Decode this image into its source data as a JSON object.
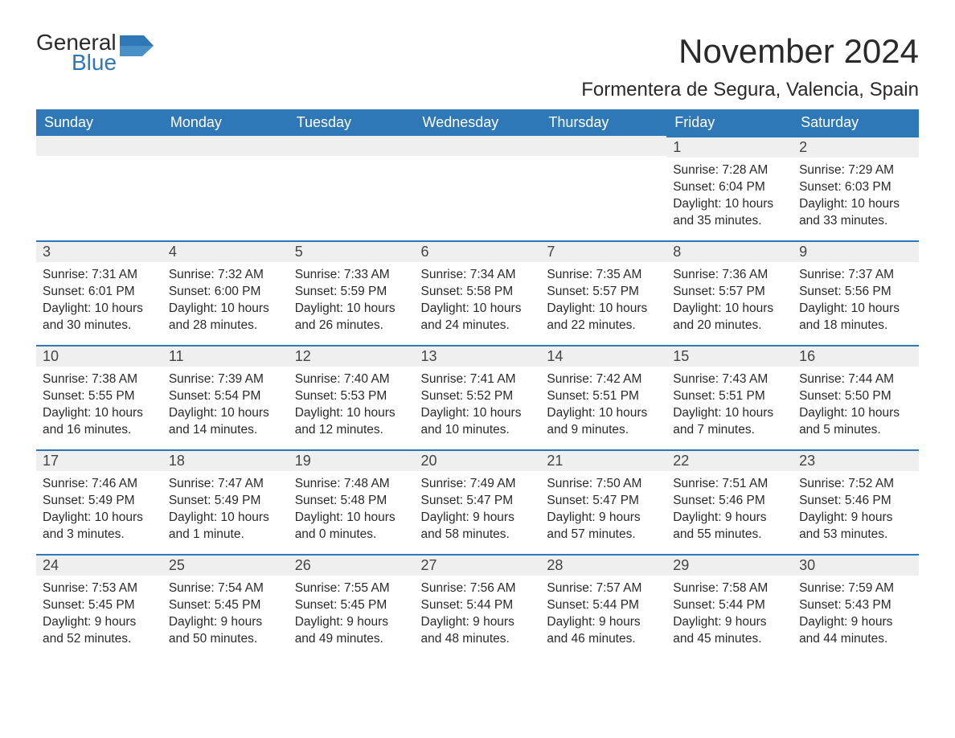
{
  "logo": {
    "text1": "General",
    "text2": "Blue",
    "accent_color": "#2f78b7"
  },
  "title": "November 2024",
  "location": "Formentera de Segura, Valencia, Spain",
  "colors": {
    "header_bg": "#2f78b7",
    "header_text": "#ffffff",
    "dayrow_bg": "#efefef",
    "dayrow_border": "#2f78b7",
    "body_bg": "#ffffff",
    "text": "#2a2a2a"
  },
  "fonts": {
    "title_size": 42,
    "location_size": 24,
    "th_size": 18,
    "daynum_size": 18,
    "body_size": 15.5
  },
  "weekdays": [
    "Sunday",
    "Monday",
    "Tuesday",
    "Wednesday",
    "Thursday",
    "Friday",
    "Saturday"
  ],
  "weeks": [
    [
      null,
      null,
      null,
      null,
      null,
      {
        "n": "1",
        "sr": "Sunrise: 7:28 AM",
        "ss": "Sunset: 6:04 PM",
        "dl": "Daylight: 10 hours and 35 minutes."
      },
      {
        "n": "2",
        "sr": "Sunrise: 7:29 AM",
        "ss": "Sunset: 6:03 PM",
        "dl": "Daylight: 10 hours and 33 minutes."
      }
    ],
    [
      {
        "n": "3",
        "sr": "Sunrise: 7:31 AM",
        "ss": "Sunset: 6:01 PM",
        "dl": "Daylight: 10 hours and 30 minutes."
      },
      {
        "n": "4",
        "sr": "Sunrise: 7:32 AM",
        "ss": "Sunset: 6:00 PM",
        "dl": "Daylight: 10 hours and 28 minutes."
      },
      {
        "n": "5",
        "sr": "Sunrise: 7:33 AM",
        "ss": "Sunset: 5:59 PM",
        "dl": "Daylight: 10 hours and 26 minutes."
      },
      {
        "n": "6",
        "sr": "Sunrise: 7:34 AM",
        "ss": "Sunset: 5:58 PM",
        "dl": "Daylight: 10 hours and 24 minutes."
      },
      {
        "n": "7",
        "sr": "Sunrise: 7:35 AM",
        "ss": "Sunset: 5:57 PM",
        "dl": "Daylight: 10 hours and 22 minutes."
      },
      {
        "n": "8",
        "sr": "Sunrise: 7:36 AM",
        "ss": "Sunset: 5:57 PM",
        "dl": "Daylight: 10 hours and 20 minutes."
      },
      {
        "n": "9",
        "sr": "Sunrise: 7:37 AM",
        "ss": "Sunset: 5:56 PM",
        "dl": "Daylight: 10 hours and 18 minutes."
      }
    ],
    [
      {
        "n": "10",
        "sr": "Sunrise: 7:38 AM",
        "ss": "Sunset: 5:55 PM",
        "dl": "Daylight: 10 hours and 16 minutes."
      },
      {
        "n": "11",
        "sr": "Sunrise: 7:39 AM",
        "ss": "Sunset: 5:54 PM",
        "dl": "Daylight: 10 hours and 14 minutes."
      },
      {
        "n": "12",
        "sr": "Sunrise: 7:40 AM",
        "ss": "Sunset: 5:53 PM",
        "dl": "Daylight: 10 hours and 12 minutes."
      },
      {
        "n": "13",
        "sr": "Sunrise: 7:41 AM",
        "ss": "Sunset: 5:52 PM",
        "dl": "Daylight: 10 hours and 10 minutes."
      },
      {
        "n": "14",
        "sr": "Sunrise: 7:42 AM",
        "ss": "Sunset: 5:51 PM",
        "dl": "Daylight: 10 hours and 9 minutes."
      },
      {
        "n": "15",
        "sr": "Sunrise: 7:43 AM",
        "ss": "Sunset: 5:51 PM",
        "dl": "Daylight: 10 hours and 7 minutes."
      },
      {
        "n": "16",
        "sr": "Sunrise: 7:44 AM",
        "ss": "Sunset: 5:50 PM",
        "dl": "Daylight: 10 hours and 5 minutes."
      }
    ],
    [
      {
        "n": "17",
        "sr": "Sunrise: 7:46 AM",
        "ss": "Sunset: 5:49 PM",
        "dl": "Daylight: 10 hours and 3 minutes."
      },
      {
        "n": "18",
        "sr": "Sunrise: 7:47 AM",
        "ss": "Sunset: 5:49 PM",
        "dl": "Daylight: 10 hours and 1 minute."
      },
      {
        "n": "19",
        "sr": "Sunrise: 7:48 AM",
        "ss": "Sunset: 5:48 PM",
        "dl": "Daylight: 10 hours and 0 minutes."
      },
      {
        "n": "20",
        "sr": "Sunrise: 7:49 AM",
        "ss": "Sunset: 5:47 PM",
        "dl": "Daylight: 9 hours and 58 minutes."
      },
      {
        "n": "21",
        "sr": "Sunrise: 7:50 AM",
        "ss": "Sunset: 5:47 PM",
        "dl": "Daylight: 9 hours and 57 minutes."
      },
      {
        "n": "22",
        "sr": "Sunrise: 7:51 AM",
        "ss": "Sunset: 5:46 PM",
        "dl": "Daylight: 9 hours and 55 minutes."
      },
      {
        "n": "23",
        "sr": "Sunrise: 7:52 AM",
        "ss": "Sunset: 5:46 PM",
        "dl": "Daylight: 9 hours and 53 minutes."
      }
    ],
    [
      {
        "n": "24",
        "sr": "Sunrise: 7:53 AM",
        "ss": "Sunset: 5:45 PM",
        "dl": "Daylight: 9 hours and 52 minutes."
      },
      {
        "n": "25",
        "sr": "Sunrise: 7:54 AM",
        "ss": "Sunset: 5:45 PM",
        "dl": "Daylight: 9 hours and 50 minutes."
      },
      {
        "n": "26",
        "sr": "Sunrise: 7:55 AM",
        "ss": "Sunset: 5:45 PM",
        "dl": "Daylight: 9 hours and 49 minutes."
      },
      {
        "n": "27",
        "sr": "Sunrise: 7:56 AM",
        "ss": "Sunset: 5:44 PM",
        "dl": "Daylight: 9 hours and 48 minutes."
      },
      {
        "n": "28",
        "sr": "Sunrise: 7:57 AM",
        "ss": "Sunset: 5:44 PM",
        "dl": "Daylight: 9 hours and 46 minutes."
      },
      {
        "n": "29",
        "sr": "Sunrise: 7:58 AM",
        "ss": "Sunset: 5:44 PM",
        "dl": "Daylight: 9 hours and 45 minutes."
      },
      {
        "n": "30",
        "sr": "Sunrise: 7:59 AM",
        "ss": "Sunset: 5:43 PM",
        "dl": "Daylight: 9 hours and 44 minutes."
      }
    ]
  ]
}
